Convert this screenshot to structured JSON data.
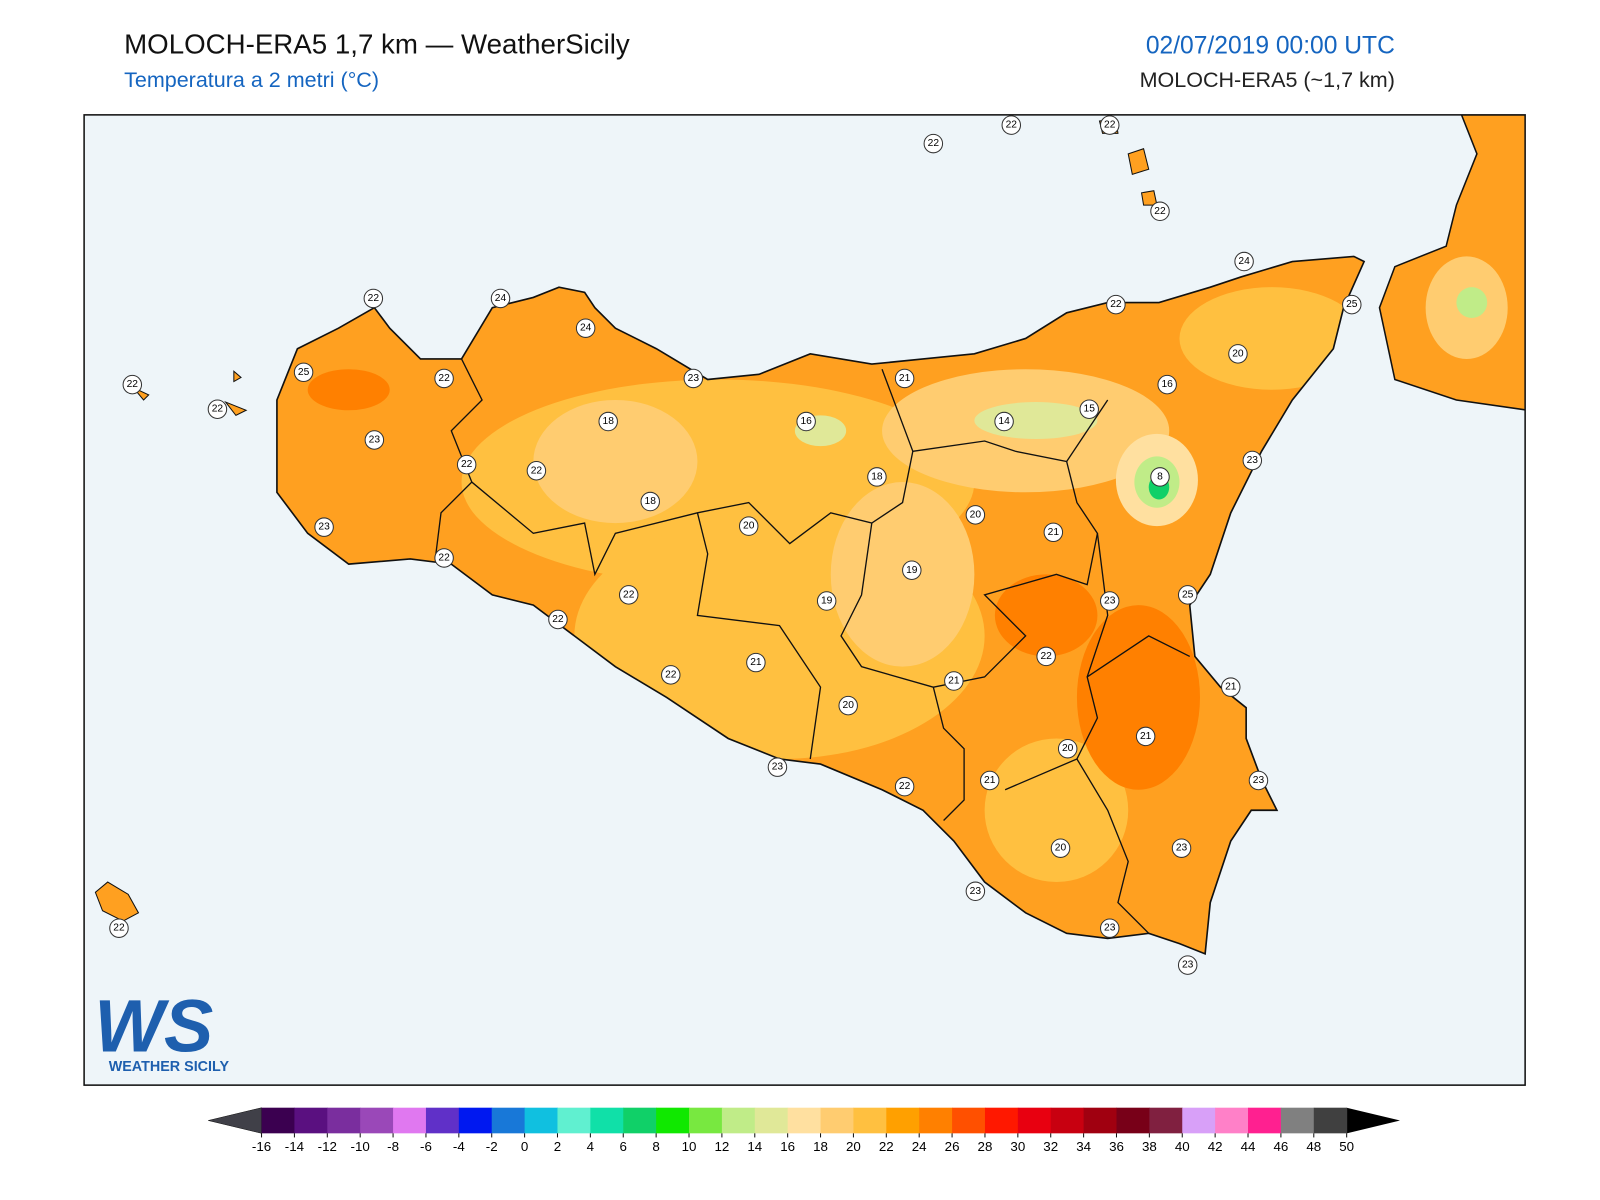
{
  "header": {
    "title": "MOLOCH-ERA5 1,7 km — WeatherSicily",
    "subtitle": "Temperatura a 2 metri (°C)",
    "date": "02/07/2019 00:00 UTC",
    "model": "MOLOCH-ERA5 (~1,7 km)"
  },
  "map": {
    "stations": [
      22,
      22,
      22,
      22,
      24,
      25,
      22,
      20,
      16,
      15,
      14,
      21,
      8,
      23,
      21,
      20,
      18,
      16,
      18,
      23,
      24,
      24,
      22,
      25,
      22,
      22,
      22,
      23,
      22,
      22,
      18,
      20,
      23,
      22,
      19,
      19,
      23,
      25,
      22,
      22,
      22,
      21,
      22,
      21,
      21,
      20,
      21,
      20,
      23,
      22,
      21,
      23,
      20,
      23,
      23,
      23,
      23,
      22
    ]
  },
  "logo": {
    "mark": "WS",
    "name": "WEATHER SICILY"
  },
  "colorbar": {
    "ticks": [
      -16,
      -14,
      -12,
      -10,
      -8,
      -6,
      -4,
      -2,
      0,
      2,
      4,
      6,
      8,
      10,
      12,
      14,
      16,
      18,
      20,
      22,
      24,
      26,
      28,
      30,
      32,
      34,
      36,
      38,
      40,
      42,
      44,
      46,
      48,
      50
    ],
    "colors": [
      "#3b0050",
      "#5a1080",
      "#7a2e9e",
      "#9a48b8",
      "#e078f0",
      "#6030c8",
      "#0018f0",
      "#1878d8",
      "#10c0e0",
      "#60f0d0",
      "#10e0a8",
      "#10d068",
      "#10e800",
      "#78e840",
      "#c0ec88",
      "#e0e898",
      "#ffe0a0",
      "#ffcc70",
      "#ffc040",
      "#ffa000",
      "#ff8000",
      "#ff5000",
      "#ff1800",
      "#e80010",
      "#c80010",
      "#a00010",
      "#780018",
      "#802040",
      "#d8a0f8",
      "#ff80c8",
      "#ff2090",
      "#808080",
      "#404040"
    ]
  }
}
